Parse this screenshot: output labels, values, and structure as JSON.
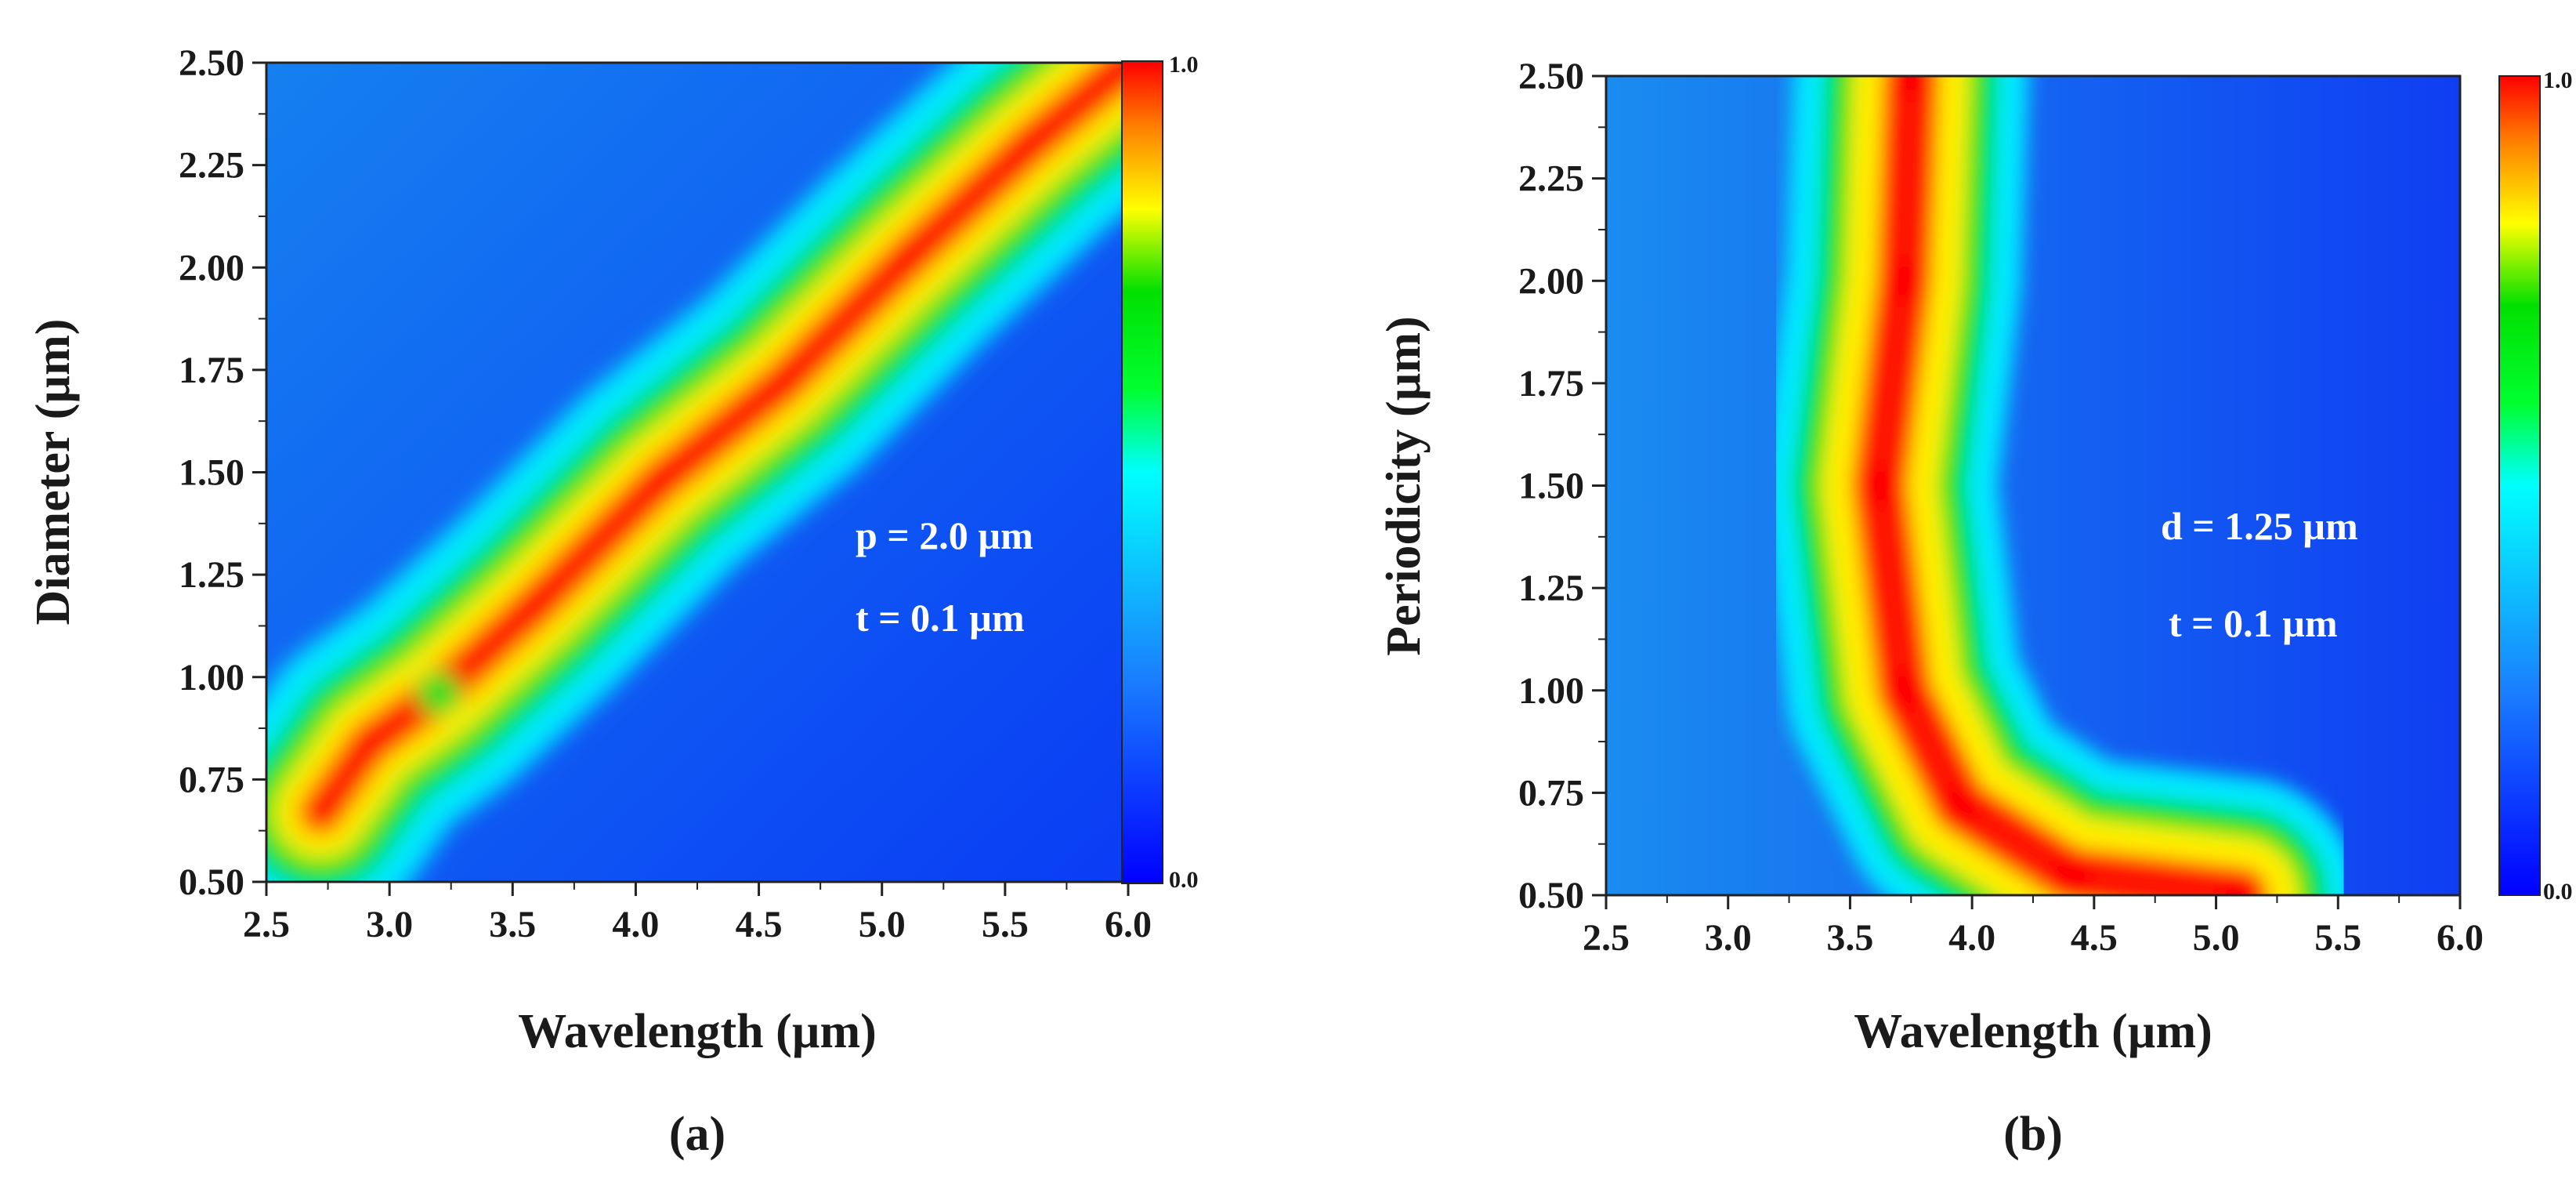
{
  "chart_data": [
    {
      "type": "heatmap",
      "panel_label": "(a)",
      "xlabel": "Wavelength (µm)",
      "ylabel": "Diameter (µm)",
      "xlim": [
        2.5,
        6.0
      ],
      "ylim": [
        0.5,
        2.5
      ],
      "x_ticks": [
        "2.5",
        "3.0",
        "3.5",
        "4.0",
        "4.5",
        "5.0",
        "5.5",
        "6.0"
      ],
      "y_ticks": [
        "0.50",
        "0.75",
        "1.00",
        "1.25",
        "1.50",
        "1.75",
        "2.00",
        "2.25",
        "2.50"
      ],
      "colorbar": {
        "min": 0.0,
        "max": 1.0,
        "min_label": "0.0",
        "max_label": "1.0"
      },
      "annotations": [
        "p = 2.0 µm",
        "t =  0.1 µm"
      ],
      "ridge": {
        "description": "peak response band",
        "points": [
          {
            "x": 2.72,
            "y": 0.67,
            "v": 1.0
          },
          {
            "x": 2.92,
            "y": 0.84,
            "v": 1.0
          },
          {
            "x": 3.2,
            "y": 0.96,
            "v": 0.65
          },
          {
            "x": 3.6,
            "y": 1.18,
            "v": 1.0
          },
          {
            "x": 4.1,
            "y": 1.48,
            "v": 1.0
          },
          {
            "x": 4.6,
            "y": 1.72,
            "v": 1.0
          },
          {
            "x": 5.1,
            "y": 2.02,
            "v": 1.0
          },
          {
            "x": 5.6,
            "y": 2.3,
            "v": 1.0
          },
          {
            "x": 6.0,
            "y": 2.5,
            "v": 1.0
          }
        ]
      }
    },
    {
      "type": "heatmap",
      "panel_label": "(b)",
      "xlabel": "Wavelength (µm)",
      "ylabel": "Periodicity (µm)",
      "xlim": [
        2.5,
        6.0
      ],
      "ylim": [
        0.5,
        2.5
      ],
      "x_ticks": [
        "2.5",
        "3.0",
        "3.5",
        "4.0",
        "4.5",
        "5.0",
        "5.5",
        "6.0"
      ],
      "y_ticks": [
        "0.50",
        "0.75",
        "1.00",
        "1.25",
        "1.50",
        "1.75",
        "2.00",
        "2.25",
        "2.50"
      ],
      "colorbar": {
        "min": 0.0,
        "max": 1.0,
        "min_label": "0.0",
        "max_label": "1.0"
      },
      "annotations": [
        "d = 1.25 µm",
        "t =  0.1 µm"
      ],
      "ridge": {
        "description": "peak response band",
        "points": [
          {
            "x": 3.75,
            "y": 2.5,
            "v": 1.0
          },
          {
            "x": 3.72,
            "y": 2.0,
            "v": 1.0
          },
          {
            "x": 3.62,
            "y": 1.5,
            "v": 1.0
          },
          {
            "x": 3.72,
            "y": 1.0,
            "v": 1.0
          },
          {
            "x": 3.95,
            "y": 0.72,
            "v": 1.0
          },
          {
            "x": 4.4,
            "y": 0.55,
            "v": 1.0
          },
          {
            "x": 5.1,
            "y": 0.5,
            "v": 0.95
          }
        ]
      }
    }
  ]
}
